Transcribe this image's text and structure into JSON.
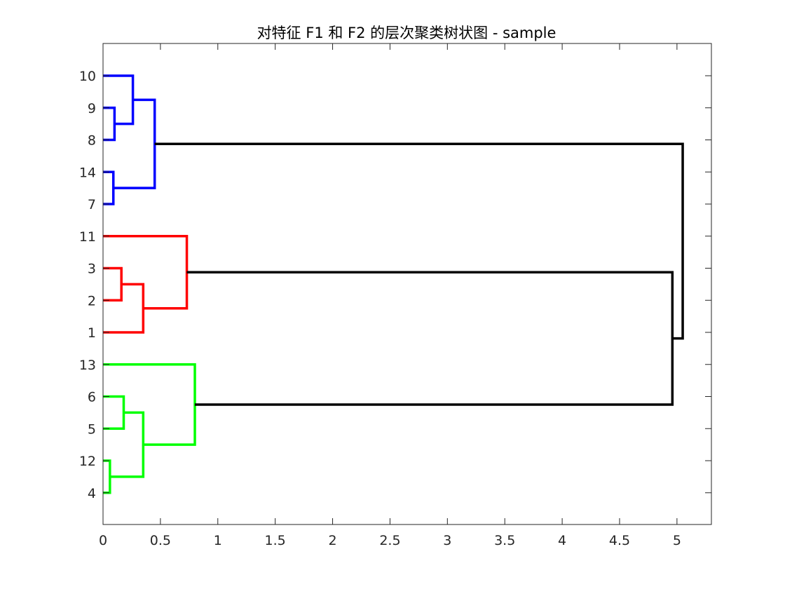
{
  "chart_data": {
    "type": "dendrogram",
    "title": "对特征 F1 和 F2 的层次聚类树状图 - sample",
    "orientation": "horizontal",
    "xlim": [
      0,
      5.3
    ],
    "xticks": [
      0,
      0.5,
      1,
      1.5,
      2,
      2.5,
      3,
      3.5,
      4,
      4.5,
      5
    ],
    "xtick_labels": [
      "0",
      "0.5",
      "1",
      "1.5",
      "2",
      "2.5",
      "3",
      "3.5",
      "4",
      "4.5",
      "5"
    ],
    "leaf_order_top_to_bottom": [
      "10",
      "9",
      "8",
      "14",
      "7",
      "11",
      "3",
      "2",
      "1",
      "13",
      "6",
      "5",
      "12",
      "4"
    ],
    "grid": false,
    "colors": {
      "cluster_blue": "#0000ff",
      "cluster_red": "#ff0000",
      "cluster_green": "#00ff00",
      "above_threshold": "#000000"
    },
    "links": [
      {
        "id": "L1",
        "children": [
          "9",
          "8"
        ],
        "height": 0.1,
        "color": "cluster_blue"
      },
      {
        "id": "L2",
        "children": [
          "10",
          "L1"
        ],
        "height": 0.26,
        "color": "cluster_blue"
      },
      {
        "id": "L3",
        "children": [
          "14",
          "7"
        ],
        "height": 0.09,
        "color": "cluster_blue"
      },
      {
        "id": "L4",
        "children": [
          "L2",
          "L3"
        ],
        "height": 0.45,
        "color": "cluster_blue"
      },
      {
        "id": "L5",
        "children": [
          "3",
          "2"
        ],
        "height": 0.16,
        "color": "cluster_red"
      },
      {
        "id": "L6",
        "children": [
          "L5",
          "1"
        ],
        "height": 0.35,
        "color": "cluster_red"
      },
      {
        "id": "L7",
        "children": [
          "11",
          "L6"
        ],
        "height": 0.73,
        "color": "cluster_red"
      },
      {
        "id": "L8",
        "children": [
          "6",
          "5"
        ],
        "height": 0.18,
        "color": "cluster_green"
      },
      {
        "id": "L9",
        "children": [
          "12",
          "4"
        ],
        "height": 0.06,
        "color": "cluster_green"
      },
      {
        "id": "L10",
        "children": [
          "L8",
          "L9"
        ],
        "height": 0.35,
        "color": "cluster_green"
      },
      {
        "id": "L11",
        "children": [
          "13",
          "L10"
        ],
        "height": 0.8,
        "color": "cluster_green"
      },
      {
        "id": "L12",
        "children": [
          "L7",
          "L11"
        ],
        "height": 4.96,
        "color": "above_threshold"
      },
      {
        "id": "L13",
        "children": [
          "L4",
          "L12"
        ],
        "height": 5.05,
        "color": "above_threshold"
      }
    ]
  }
}
